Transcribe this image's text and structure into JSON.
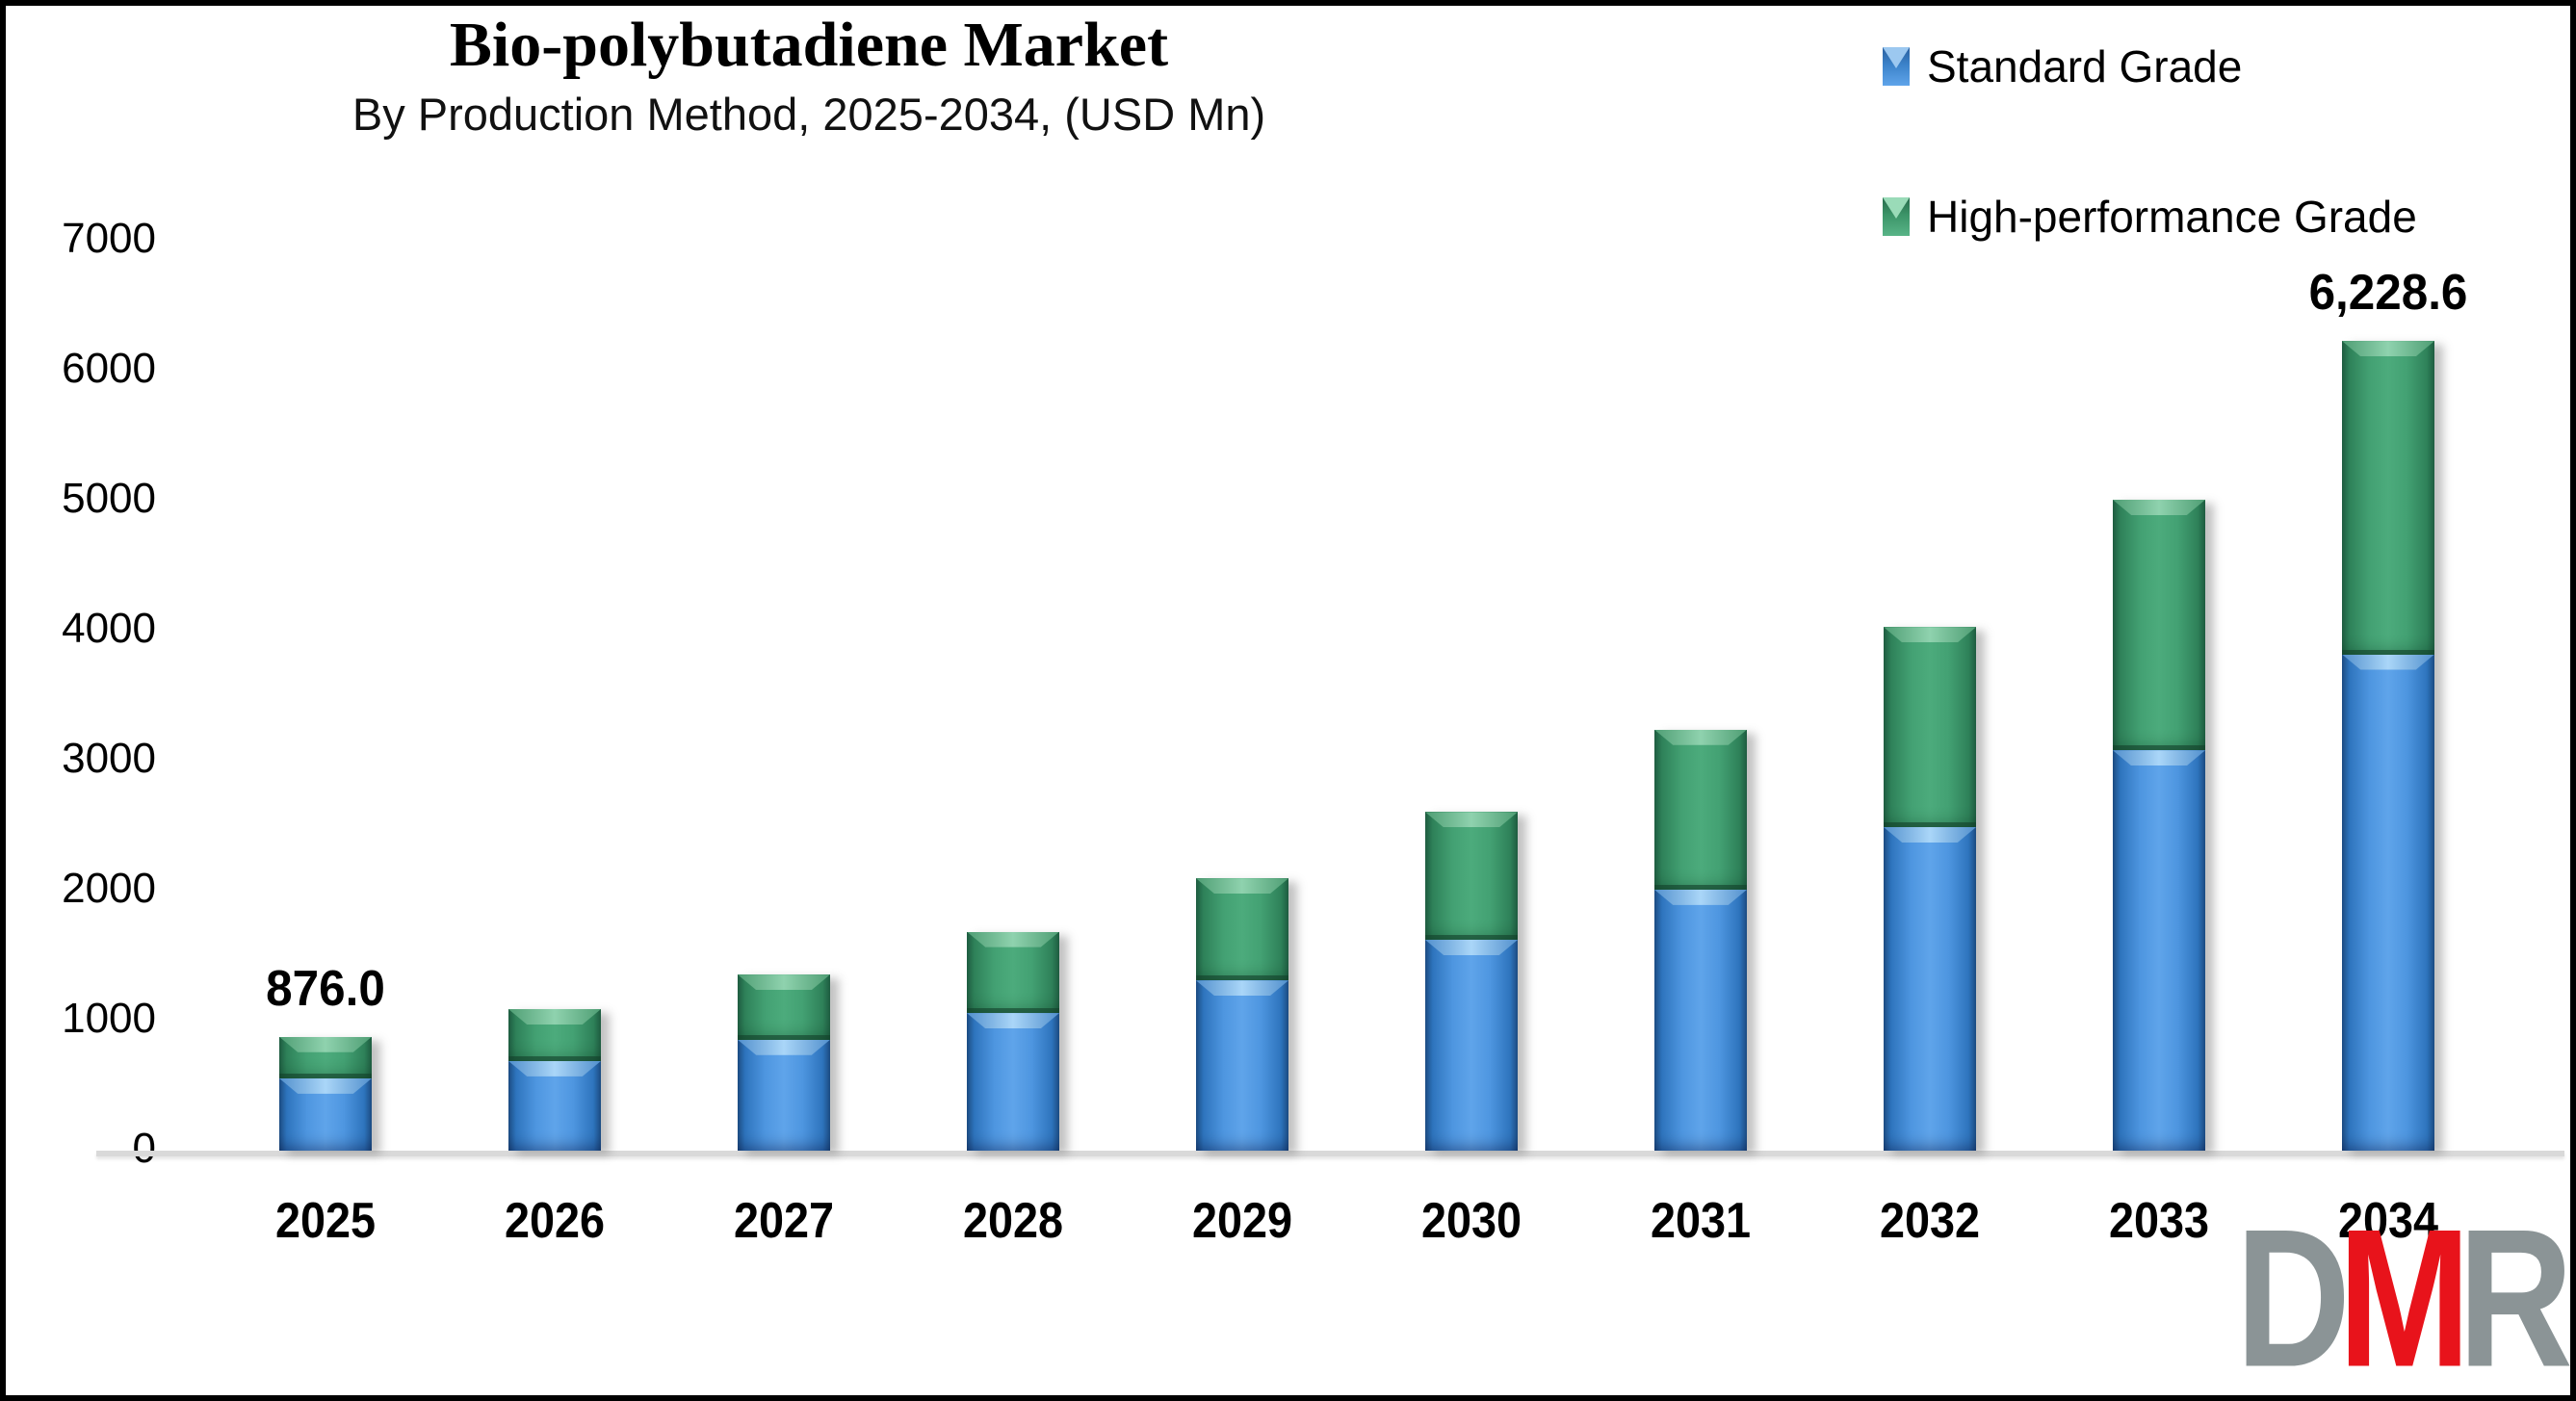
{
  "title": "Bio-polybutadiene Market",
  "subtitle": "By Production Method, 2025-2034, (USD Mn)",
  "legend": {
    "items": [
      {
        "label": "Standard Grade",
        "color": "#3b82c9"
      },
      {
        "label": "High-performance Grade",
        "color": "#3c9468"
      }
    ]
  },
  "logo": {
    "letters": [
      {
        "char": "D",
        "color": "#8b9496"
      },
      {
        "char": "M",
        "color": "#e8131b"
      },
      {
        "char": "R",
        "color": "#8b9496"
      }
    ]
  },
  "chart_data": {
    "type": "bar",
    "stacked": true,
    "title": "Bio-polybutadiene Market",
    "subtitle": "By Production Method, 2025-2034, (USD Mn)",
    "unit": "USD Mn",
    "categories": [
      "2025",
      "2026",
      "2027",
      "2028",
      "2029",
      "2030",
      "2031",
      "2032",
      "2033",
      "2034"
    ],
    "series": [
      {
        "name": "Standard Grade",
        "color": "#3b82c9",
        "values": [
          556.3,
          689.5,
          853.3,
          1057.8,
          1309.1,
          1622.6,
          2008.0,
          2489.1,
          3079.8,
          3818.1
        ]
      },
      {
        "name": "High-performance Grade",
        "color": "#3c9468",
        "values": [
          319.7,
          399.8,
          501.2,
          626.6,
          785.4,
          981.9,
          1230.7,
          1538.5,
          1928.0,
          2410.5
        ]
      }
    ],
    "totals": [
      876.0,
      1089.3,
      1354.5,
      1684.4,
      2094.5,
      2604.5,
      3238.7,
      4027.6,
      5007.8,
      6228.6
    ],
    "annotations": [
      {
        "category": "2025",
        "text": "876.0"
      },
      {
        "category": "2034",
        "text": "6,228.6"
      }
    ],
    "y_axis": {
      "range": [
        0,
        7000
      ],
      "ticks": [
        0,
        1000,
        2000,
        3000,
        4000,
        5000,
        6000,
        7000
      ]
    },
    "xlabel": "",
    "ylabel": "",
    "gridlines": false,
    "legend_position": "top-right"
  }
}
